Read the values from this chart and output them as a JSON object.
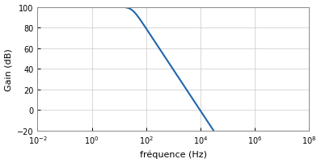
{
  "title": "",
  "xlabel": "fréquence (Hz)",
  "ylabel": "Gain (dB)",
  "xlim": [
    0.01,
    100000000.0
  ],
  "ylim": [
    -20,
    100
  ],
  "yticks": [
    -20,
    0,
    20,
    40,
    60,
    80,
    100
  ],
  "line_color": "#2166ac",
  "line_width": 1.5,
  "background_color": "#ffffff",
  "grid_color": "#c8c8c8",
  "dc_gain_db": 100,
  "cutoff_freq": 30.0,
  "filter_order": 2,
  "figsize": [
    3.97,
    2.03
  ],
  "dpi": 100
}
